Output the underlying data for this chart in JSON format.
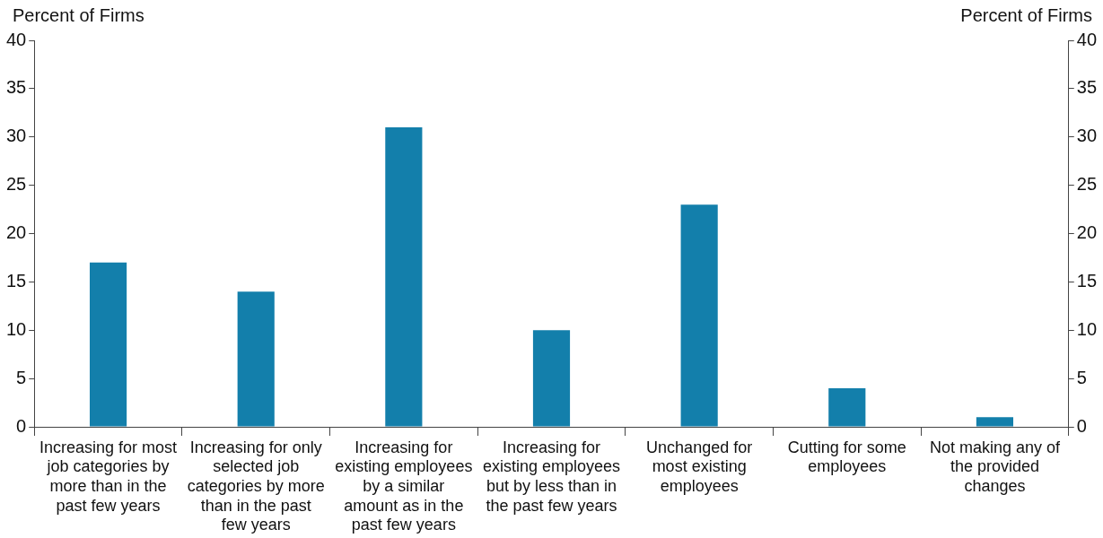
{
  "chart_data": {
    "type": "bar",
    "ylabel": "Percent of Firms",
    "y2label": "Percent of Firms",
    "categories": [
      "Increasing for most job categories by more than in the past few years",
      "Increasing for only selected job categories by more than in the past few years",
      "Increasing for existing employees by a similar amount as in the past few years",
      "Increasing for existing employees but by less than in the past few years",
      "Unchanged for most existing employees",
      "Cutting for some employees",
      "Not making any of the provided changes"
    ],
    "values": [
      17,
      14,
      31,
      10,
      23,
      4,
      1
    ],
    "color": "#137fab",
    "ylim": [
      0,
      40
    ],
    "yticks": [
      0,
      5,
      10,
      15,
      20,
      25,
      30,
      35,
      40
    ],
    "y2lim": [
      0,
      40
    ],
    "y2ticks": [
      0,
      5,
      10,
      15,
      20,
      25,
      30,
      35,
      40
    ],
    "grid": false,
    "legend": false
  }
}
